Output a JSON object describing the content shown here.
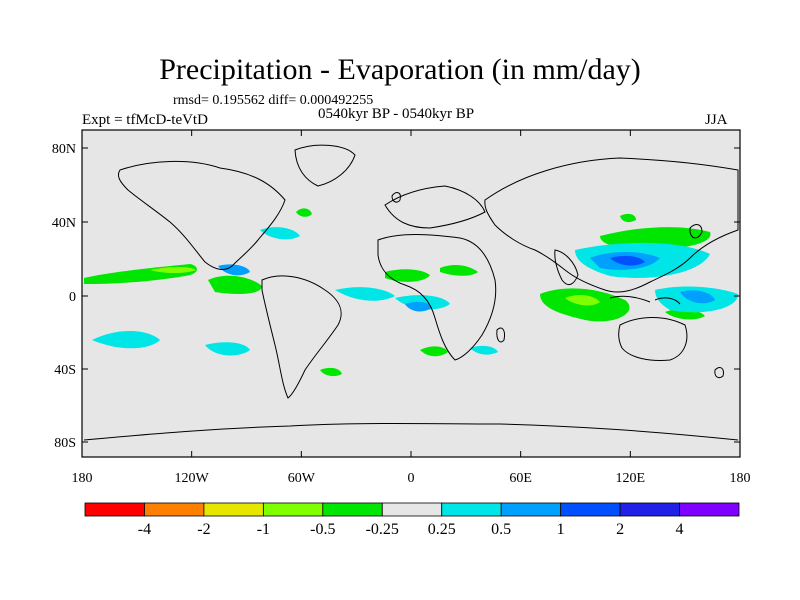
{
  "title": "Precipitation - Evaporation (in mm/day)",
  "stats": "rmsd= 0.195562 diff= 0.000492255",
  "period": "0540kyr BP - 0540kyr BP",
  "experiment": "Expt = tfMcD-teVtD",
  "season": "JJA",
  "map": {
    "lat_ticks": [
      "80N",
      "40N",
      "0",
      "40S",
      "80S"
    ],
    "lon_ticks": [
      "180",
      "120W",
      "60W",
      "0",
      "60E",
      "120E",
      "180"
    ],
    "background_color": "#e6e6e6",
    "coastline_color": "#000000"
  },
  "colorbar": {
    "labels": [
      "-4",
      "-2",
      "-1",
      "-0.5",
      "-0.25",
      "0.25",
      "0.5",
      "1",
      "2",
      "4"
    ],
    "colors": [
      "#ff0000",
      "#ff8000",
      "#e6e600",
      "#80ff00",
      "#00e600",
      "#e6e6e6",
      "#00e6e6",
      "#00a0ff",
      "#0050ff",
      "#2020e6",
      "#8000ff"
    ]
  }
}
